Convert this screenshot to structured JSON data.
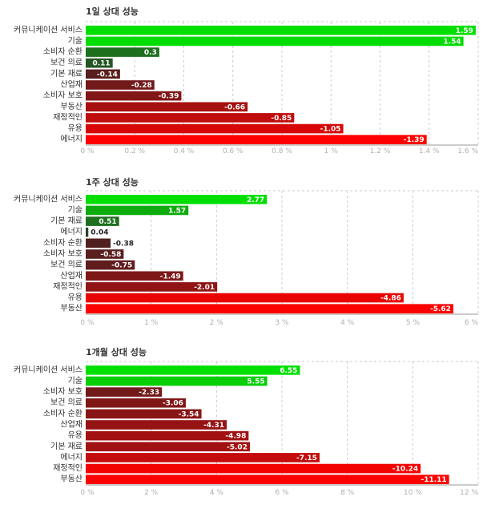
{
  "chart_data": [
    {
      "type": "bar",
      "orientation": "horizontal",
      "title": "1일 상대 성능",
      "categories": [
        "커뮤니케이션 서비스",
        "기술",
        "소비자 순환",
        "보건 의료",
        "기본 재료",
        "산업재",
        "소비자 보호",
        "부동산",
        "재정적인",
        "유용",
        "에너지"
      ],
      "values": [
        1.59,
        1.54,
        0.3,
        0.11,
        -0.14,
        -0.28,
        -0.39,
        -0.66,
        -0.85,
        -1.05,
        -1.39
      ],
      "value_labels": [
        "1.59",
        "1.54",
        "0.3",
        "0.11",
        "-0.14",
        "-0.28",
        "-0.39",
        "-0.66",
        "-0.85",
        "-1.05",
        "-1.39"
      ],
      "xlim": [
        0,
        1.6
      ],
      "ticks": [
        0,
        0.2,
        0.4,
        0.6,
        0.8,
        1,
        1.2,
        1.4,
        1.6
      ],
      "tick_labels": [
        "0 %",
        "0.2 %",
        "0.4 %",
        "0.6 %",
        "0.8 %",
        "1 %",
        "1.2 %",
        "1.4 %",
        "1.6 %"
      ],
      "grid": true
    },
    {
      "type": "bar",
      "orientation": "horizontal",
      "title": "1주 상대 성능",
      "categories": [
        "커뮤니케이션 서비스",
        "기술",
        "기본 재료",
        "에너지",
        "소비자 순환",
        "소비자 보호",
        "보건 의료",
        "산업재",
        "재정적인",
        "유용",
        "부동산"
      ],
      "values": [
        2.77,
        1.57,
        0.51,
        0.04,
        -0.38,
        -0.58,
        -0.75,
        -1.49,
        -2.01,
        -4.86,
        -5.62
      ],
      "value_labels": [
        "2.77",
        "1.57",
        "0.51",
        "0.04",
        "-0.38",
        "-0.58",
        "-0.75",
        "-1.49",
        "-2.01",
        "-4.86",
        "-5.62"
      ],
      "xlim": [
        0,
        6
      ],
      "ticks": [
        0,
        1,
        2,
        3,
        4,
        5,
        6
      ],
      "tick_labels": [
        "0 %",
        "1 %",
        "2 %",
        "3 %",
        "4 %",
        "5 %",
        "6 %"
      ],
      "grid": true
    },
    {
      "type": "bar",
      "orientation": "horizontal",
      "title": "1개월 상대 성능",
      "categories": [
        "커뮤니케이션 서비스",
        "기술",
        "소비자 보호",
        "보건 의료",
        "소비자 순환",
        "산업재",
        "유용",
        "기본 재료",
        "에너지",
        "재정적인",
        "부동산"
      ],
      "values": [
        6.55,
        5.55,
        -2.33,
        -3.06,
        -3.54,
        -4.31,
        -4.98,
        -5.02,
        -7.15,
        -10.24,
        -11.11
      ],
      "value_labels": [
        "6.55",
        "5.55",
        "-2.33",
        "-3.06",
        "-3.54",
        "-4.31",
        "-4.98",
        "-5.02",
        "-7.15",
        "-10.24",
        "-11.11"
      ],
      "xlim": [
        0,
        12
      ],
      "ticks": [
        0,
        2,
        4,
        6,
        8,
        10,
        12
      ],
      "tick_labels": [
        "0 %",
        "2 %",
        "4 %",
        "6 %",
        "8 %",
        "10 %",
        "12 %"
      ],
      "grid": true
    }
  ],
  "colors": {
    "positive_max": "#00e000",
    "positive_min": "#2b3d2b",
    "negative_min": "#3a2424",
    "negative_max": "#ff0000",
    "value_text_light": "#ffffff",
    "value_text_dark": "#222222",
    "title_text": "#333333",
    "category_text": "#333333",
    "tick_text": "#b0b0b0"
  }
}
